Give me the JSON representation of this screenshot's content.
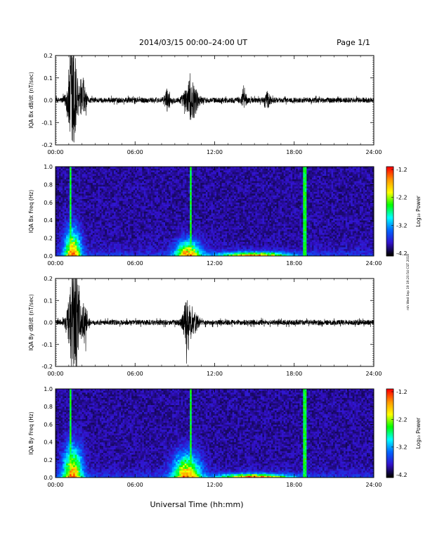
{
  "header": {
    "title": "2014/03/15  00:00–24:00 UT",
    "page": "Page 1/1"
  },
  "footer": {
    "xlabel": "Universal Time (hh:mm)",
    "stamp": "rsh Wed Sep 19 19:20:54 CST 2018"
  },
  "colorbar": {
    "label": "Log₁₀ Power",
    "ticks": [
      "-1.2",
      "-2.2",
      "-3.2",
      "-4.2"
    ],
    "colors": [
      "#ff0000",
      "#ff9900",
      "#ffff00",
      "#00ff00",
      "#00ffff",
      "#0066ff",
      "#3311cc",
      "#000000"
    ]
  },
  "chart_data": [
    {
      "type": "line",
      "ylabel": "IQA Bx dB/dt (nT/sec)",
      "xlim": [
        0,
        24
      ],
      "ylim": [
        -0.2,
        0.2
      ],
      "x_ticks": [
        "00:00",
        "06:00",
        "12:00",
        "18:00",
        "24:00"
      ],
      "y_ticks": [
        "0.2",
        "0.1",
        "0.0",
        "-0.1",
        "-0.2"
      ],
      "noise_level": 0.012,
      "bursts": [
        {
          "center": 1.3,
          "width": 0.35,
          "amplitude": 0.28
        },
        {
          "center": 2.1,
          "width": 0.2,
          "amplitude": 0.08
        },
        {
          "center": 8.4,
          "width": 0.2,
          "amplitude": 0.04
        },
        {
          "center": 10.2,
          "width": 0.5,
          "amplitude": 0.08
        },
        {
          "center": 14.2,
          "width": 0.2,
          "amplitude": 0.03
        },
        {
          "center": 16.0,
          "width": 0.2,
          "amplitude": 0.03
        }
      ]
    },
    {
      "type": "heatmap",
      "ylabel": "IQA Bx Freq (Hz)",
      "xlim": [
        0,
        24
      ],
      "ylim": [
        0.0,
        1.0
      ],
      "x_ticks": [
        "00:00",
        "06:00",
        "12:00",
        "18:00",
        "24:00"
      ],
      "y_ticks": [
        "1.0",
        "0.8",
        "0.6",
        "0.4",
        "0.2",
        "0.0"
      ],
      "zlim": [
        -4.2,
        -1.2
      ],
      "vertical_lines": [
        1.15,
        10.2,
        18.8
      ],
      "activity": [
        {
          "center": 1.3,
          "width": 0.6,
          "freq_max": 0.35
        },
        {
          "center": 10.0,
          "width": 0.9,
          "freq_max": 0.2
        },
        {
          "center": 15.0,
          "width": 2.5,
          "freq_max": 0.05
        }
      ]
    },
    {
      "type": "line",
      "ylabel": "IQA By dB/dt (nT/sec)",
      "xlim": [
        0,
        24
      ],
      "ylim": [
        -0.2,
        0.2
      ],
      "x_ticks": [
        "00:00",
        "06:00",
        "12:00",
        "18:00",
        "24:00"
      ],
      "y_ticks": [
        "0.2",
        "0.1",
        "0.0",
        "-0.1",
        "-0.2"
      ],
      "noise_level": 0.012,
      "bursts": [
        {
          "center": 1.4,
          "width": 0.4,
          "amplitude": 0.28
        },
        {
          "center": 2.2,
          "width": 0.2,
          "amplitude": 0.08
        },
        {
          "center": 10.0,
          "width": 0.35,
          "amplitude": 0.12
        },
        {
          "center": 10.6,
          "width": 0.2,
          "amplitude": 0.03
        }
      ]
    },
    {
      "type": "heatmap",
      "ylabel": "IQA By Freq (Hz)",
      "xlim": [
        0,
        24
      ],
      "ylim": [
        0.0,
        1.0
      ],
      "x_ticks": [
        "00:00",
        "06:00",
        "12:00",
        "18:00",
        "24:00"
      ],
      "y_ticks": [
        "1.0",
        "0.8",
        "0.6",
        "0.4",
        "0.2",
        "0.0"
      ],
      "zlim": [
        -4.2,
        -1.2
      ],
      "vertical_lines": [
        1.15,
        10.2,
        18.8
      ],
      "activity": [
        {
          "center": 1.3,
          "width": 0.7,
          "freq_max": 0.4
        },
        {
          "center": 9.9,
          "width": 1.0,
          "freq_max": 0.3
        },
        {
          "center": 15.0,
          "width": 2.5,
          "freq_max": 0.05
        }
      ]
    }
  ]
}
